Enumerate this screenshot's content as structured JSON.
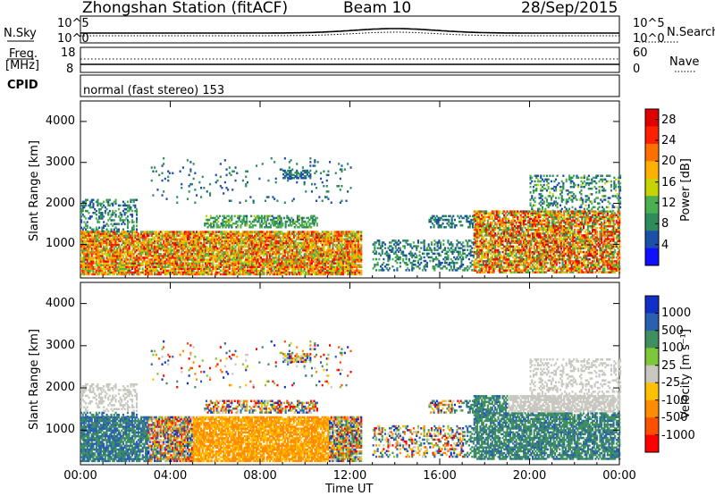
{
  "header": {
    "station": "Zhongshan Station (fitACF)",
    "beam": "Beam 10",
    "date": "28/Sep/2015"
  },
  "top_panels": {
    "nsky_label": "N.Sky",
    "nsky_ticks": [
      "10^5",
      "10^0"
    ],
    "nsearch_label": "N.Search",
    "nsearch_ticks": [
      "10^5",
      "10^0"
    ],
    "freq_label_1": "Freq.",
    "freq_label_2": "[MHz]",
    "freq_ticks": [
      "18",
      "8"
    ],
    "nave_label": "Nave",
    "nave_ticks": [
      "60",
      "0"
    ],
    "cpid_label": "CPID",
    "cpid_text": "normal (fast stereo) 153"
  },
  "colors": {
    "power": [
      "#1010ff",
      "#1c4fa8",
      "#2d8c5a",
      "#4caf50",
      "#c8d400",
      "#ffb000",
      "#ff7000",
      "#ff2000",
      "#e00000"
    ],
    "velocity": [
      "#ff0000",
      "#ff5000",
      "#ff8c00",
      "#ffc000",
      "#c8c8c0",
      "#7cc838",
      "#3f8f5f",
      "#2a60b0",
      "#1030c8"
    ]
  },
  "chart_data": [
    {
      "type": "heatmap",
      "title": "",
      "xlabel": "Time UT",
      "ylabel": "Slant Range [km]",
      "x_ticks": [
        "00:00",
        "04:00",
        "08:00",
        "12:00",
        "16:00",
        "20:00",
        "00:00"
      ],
      "x_range_hours": [
        0,
        24
      ],
      "y_ticks": [
        1000,
        2000,
        3000,
        4000
      ],
      "y_range_km": [
        180,
        4500
      ],
      "colorbar_label": "Power [dB]",
      "colorbar_ticks": [
        "4",
        "8",
        "12",
        "16",
        "20",
        "24",
        "28"
      ],
      "colorbar_range": [
        0,
        30
      ]
    },
    {
      "type": "heatmap",
      "title": "",
      "xlabel": "Time UT",
      "ylabel": "Slant Range [km]",
      "x_ticks": [
        "00:00",
        "04:00",
        "08:00",
        "12:00",
        "16:00",
        "20:00",
        "00:00"
      ],
      "x_range_hours": [
        0,
        24
      ],
      "y_ticks": [
        1000,
        2000,
        3000,
        4000
      ],
      "y_range_km": [
        180,
        4500
      ],
      "colorbar_label": "Velocity [m s⁻¹]",
      "colorbar_ticks": [
        "1000",
        "500",
        "100",
        "25",
        "-25",
        "-100",
        "-500",
        "-1000"
      ]
    }
  ]
}
